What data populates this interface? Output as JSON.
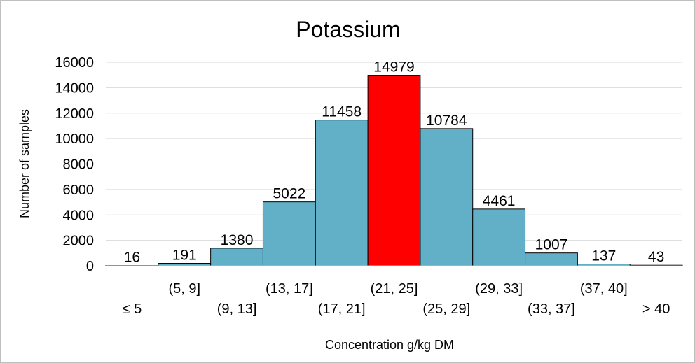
{
  "chart_data": {
    "type": "bar",
    "title": "Potassium",
    "xlabel": "Concentration g/kg DM",
    "ylabel": "Number of samples",
    "ylim": [
      0,
      16000
    ],
    "yticks": [
      0,
      2000,
      4000,
      6000,
      8000,
      10000,
      12000,
      14000,
      16000
    ],
    "grid": true,
    "legend": "none",
    "categories": [
      "≤ 5",
      "(5, 9]",
      "(9, 13]",
      "(13, 17]",
      "(17, 21]",
      "(21, 25]",
      "(25, 29]",
      "(29, 33]",
      "(33, 37]",
      "(37, 40]",
      "> 40"
    ],
    "values": [
      16,
      191,
      1380,
      5022,
      11458,
      14979,
      10784,
      4461,
      1007,
      137,
      43
    ],
    "bar_color": "#62b0c8",
    "highlight_color": "#ff0000",
    "highlight_category": "(21, 25]"
  }
}
